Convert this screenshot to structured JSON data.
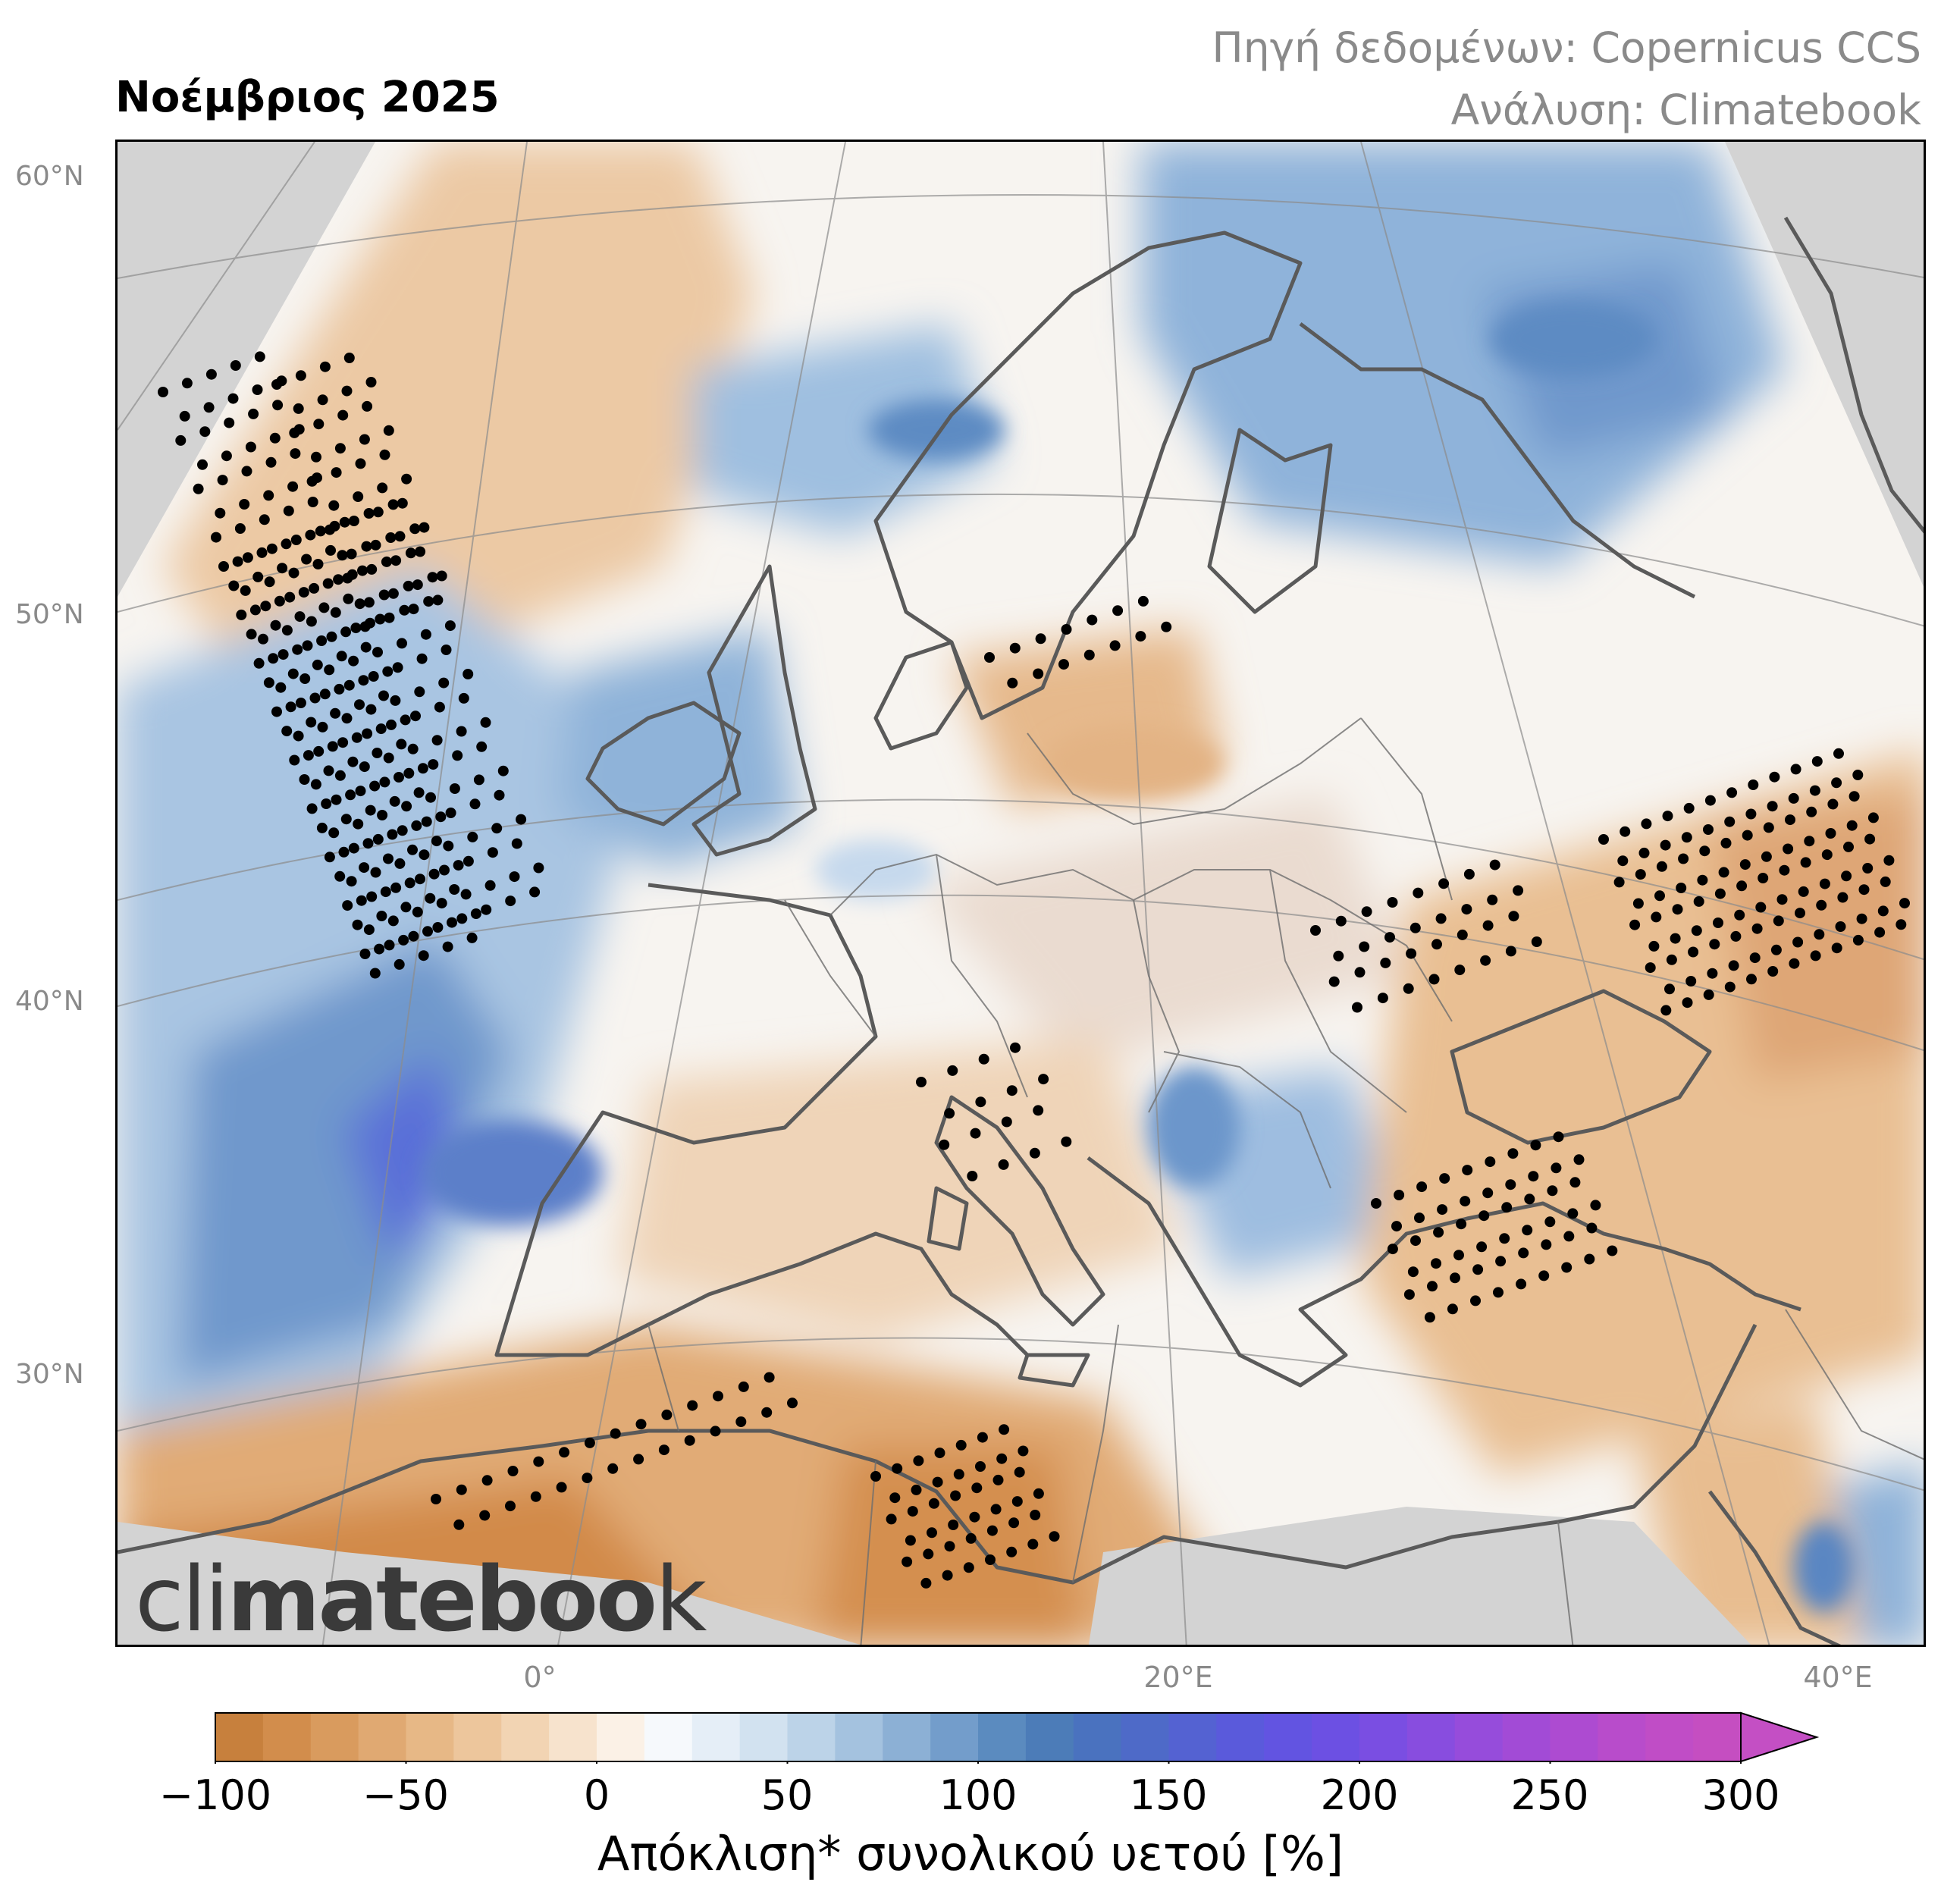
{
  "header": {
    "title": "Νοέμβριος 2025",
    "source_line1": "Πηγή δεδομένων: Copernicus CCS",
    "source_line2": "Ανάλυση: Climatebook"
  },
  "map": {
    "latitude_labels": [
      "60°N",
      "50°N",
      "40°N",
      "30°N"
    ],
    "longitude_labels": [
      "0°",
      "20°E",
      "40°E"
    ],
    "land_no_data_color": "#d3d3d3",
    "coastline_color": "#5a5a5a",
    "stipple_color": "#000000"
  },
  "watermark": {
    "part1": "cli",
    "part2": "mate",
    "part3": "boo",
    "part4": "k"
  },
  "colorbar": {
    "label": "Απόκλιση* συνολικού υετού [%]",
    "ticks": [
      "−100",
      "−50",
      "0",
      "50",
      "100",
      "150",
      "200",
      "250",
      "300"
    ],
    "min": -100,
    "max": 300,
    "extend": "max",
    "colors": [
      "#c7803d",
      "#d28d4c",
      "#d99b5e",
      "#e0a972",
      "#e7b886",
      "#edc69c",
      "#f2d4b3",
      "#f7e3cd",
      "#fbf1e6",
      "#f6f9fc",
      "#e5eef7",
      "#d2e2f0",
      "#bcd3e8",
      "#a4c2df",
      "#8cb0d5",
      "#739dcb",
      "#5b8bbf",
      "#4c7cb8",
      "#4a72bf",
      "#4e6ac8",
      "#5462d2",
      "#5a5adb",
      "#6254e1",
      "#6c50e3",
      "#7a4ee2",
      "#884ddf",
      "#964cdb",
      "#a24bd6",
      "#ad4bd1",
      "#b84ccb",
      "#c04dc6",
      "#c54ec1"
    ],
    "extend_color": "#c44fc4"
  }
}
